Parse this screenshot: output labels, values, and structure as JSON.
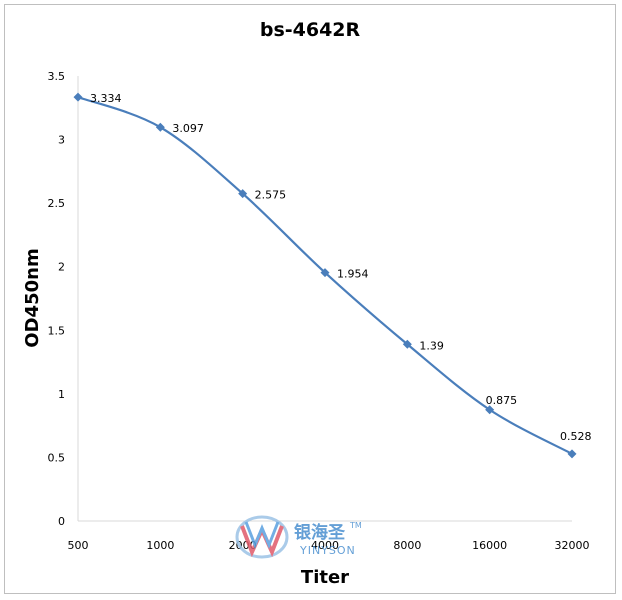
{
  "chart_data": {
    "type": "line",
    "title": "bs-4642R",
    "xlabel": "Titer",
    "ylabel": "OD450nm",
    "categories": [
      "500",
      "1000",
      "2000",
      "4000",
      "8000",
      "16000",
      "32000"
    ],
    "series": [
      {
        "values": [
          3.334,
          3.097,
          2.575,
          1.954,
          1.39,
          0.875,
          0.528
        ]
      }
    ],
    "data_labels": [
      "3.334",
      "3.097",
      "2.575",
      "1.954",
      "1.39",
      "0.875",
      "0.528"
    ],
    "ylim": [
      0,
      3.5
    ],
    "yticks": [
      "0",
      "0.5",
      "1",
      "1.5",
      "2",
      "2.5",
      "3",
      "3.5"
    ],
    "grid": false,
    "legend": "none",
    "colors": {
      "line": "#4a7ebb",
      "marker": "#4a7ebb",
      "axis": "#d9d9d9"
    }
  },
  "watermark": {
    "chinese": "银海圣",
    "english": "YINYSON",
    "trademark": "TM"
  }
}
